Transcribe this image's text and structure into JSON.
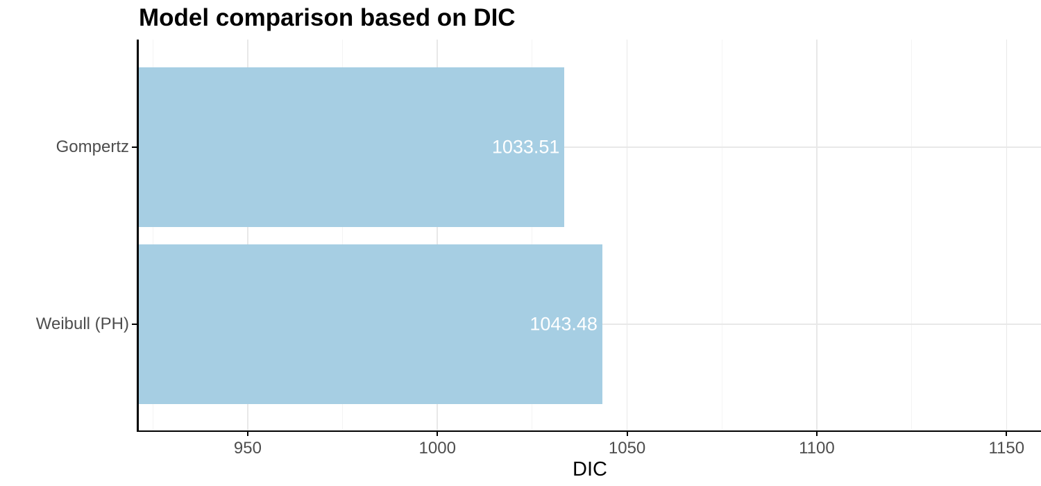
{
  "chart_data": {
    "type": "bar",
    "orientation": "horizontal",
    "title": "Model comparison based on DIC",
    "xlabel": "DIC",
    "ylabel": "",
    "categories": [
      "Gompertz",
      "Weibull (PH)"
    ],
    "values": [
      1033.51,
      1043.48
    ],
    "value_labels": [
      "1033.51",
      "1043.48"
    ],
    "x_ticks": [
      950,
      1000,
      1050,
      1100,
      1150
    ],
    "x_minor_step": 25,
    "x_domain": [
      921.3,
      1159.1
    ],
    "grid": "major and minor vertical, major horizontal at category centers",
    "legend": "none",
    "colors": {
      "bar_fill": "#A6CEE3",
      "bar_label": "#FFFFFF",
      "axis_line": "#000000",
      "axis_text": "#4D4D4D",
      "title_text": "#000000",
      "grid_major": "#E8E8E8",
      "grid_minor": "#F4F4F4",
      "background": "#FFFFFF"
    }
  }
}
